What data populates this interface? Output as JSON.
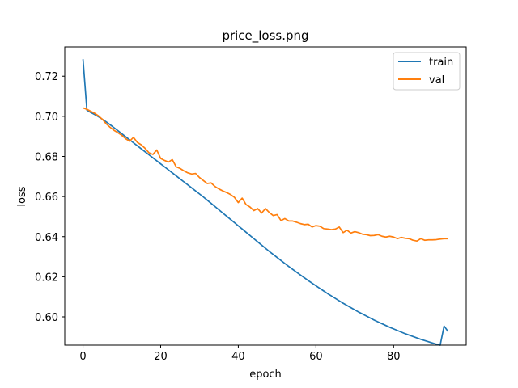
{
  "chart_data": {
    "type": "line",
    "title": "price_loss.png",
    "xlabel": "epoch",
    "ylabel": "loss",
    "xlim": [
      -4.7,
      98.7
    ],
    "ylim": [
      0.5859,
      0.7346
    ],
    "xticks": [
      0,
      20,
      40,
      60,
      80
    ],
    "yticks": [
      0.6,
      0.62,
      0.64,
      0.66,
      0.68,
      0.7,
      0.72
    ],
    "ytick_labels": [
      "0.60",
      "0.62",
      "0.64",
      "0.66",
      "0.68",
      "0.70",
      "0.72"
    ],
    "grid": false,
    "legend": "top-right",
    "series": [
      {
        "name": "train",
        "color": "#1f77b4",
        "values": [
          0.7285,
          0.7031,
          0.7019,
          0.7009,
          0.6998,
          0.6985,
          0.6972,
          0.6958,
          0.6943,
          0.6928,
          0.6913,
          0.6898,
          0.6883,
          0.6868,
          0.6853,
          0.6838,
          0.6823,
          0.6808,
          0.6793,
          0.6778,
          0.6763,
          0.6748,
          0.6733,
          0.6718,
          0.6703,
          0.6688,
          0.6673,
          0.6658,
          0.6643,
          0.6628,
          0.6613,
          0.6598,
          0.6582,
          0.6566,
          0.655,
          0.6534,
          0.6518,
          0.6502,
          0.6486,
          0.647,
          0.6454,
          0.6438,
          0.6422,
          0.6406,
          0.639,
          0.6374,
          0.6358,
          0.6342,
          0.6326,
          0.6311,
          0.6296,
          0.6281,
          0.6266,
          0.6251,
          0.6237,
          0.6223,
          0.6209,
          0.6195,
          0.6181,
          0.6168,
          0.6155,
          0.6142,
          0.6129,
          0.6116,
          0.6104,
          0.6092,
          0.608,
          0.6068,
          0.6057,
          0.6046,
          0.6035,
          0.6024,
          0.6014,
          0.6004,
          0.5994,
          0.5984,
          0.5975,
          0.5966,
          0.5957,
          0.5948,
          0.594,
          0.5932,
          0.5924,
          0.5916,
          0.5909,
          0.5902,
          0.5895,
          0.5888,
          0.5882,
          0.5876,
          0.587,
          0.5864,
          0.5859,
          0.5954,
          0.5928
        ]
      },
      {
        "name": "val",
        "color": "#ff7f0e",
        "values": [
          0.7042,
          0.7035,
          0.7025,
          0.7015,
          0.7002,
          0.6985,
          0.6962,
          0.6945,
          0.693,
          0.6918,
          0.6905,
          0.6888,
          0.6876,
          0.6895,
          0.687,
          0.6858,
          0.684,
          0.6818,
          0.681,
          0.6832,
          0.679,
          0.678,
          0.6772,
          0.6784,
          0.6748,
          0.674,
          0.6728,
          0.6718,
          0.6712,
          0.6715,
          0.6695,
          0.668,
          0.6665,
          0.6668,
          0.665,
          0.6638,
          0.6628,
          0.662,
          0.661,
          0.6596,
          0.657,
          0.6592,
          0.656,
          0.6548,
          0.653,
          0.654,
          0.6518,
          0.654,
          0.652,
          0.6505,
          0.651,
          0.648,
          0.649,
          0.6478,
          0.6478,
          0.6472,
          0.6465,
          0.646,
          0.6462,
          0.6448,
          0.6455,
          0.6452,
          0.644,
          0.6438,
          0.6435,
          0.6438,
          0.6448,
          0.642,
          0.6432,
          0.6418,
          0.6425,
          0.642,
          0.6412,
          0.641,
          0.6405,
          0.6406,
          0.641,
          0.6402,
          0.6398,
          0.6402,
          0.6398,
          0.639,
          0.6396,
          0.6392,
          0.639,
          0.6382,
          0.6378,
          0.639,
          0.6382,
          0.6384,
          0.6384,
          0.6385,
          0.6388,
          0.639,
          0.639
        ]
      }
    ]
  }
}
